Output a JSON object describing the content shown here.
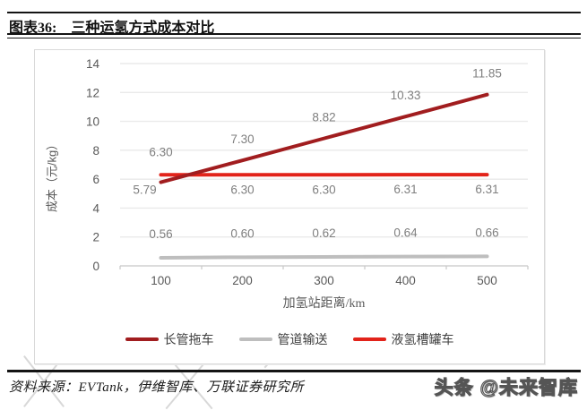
{
  "page": {
    "figure_label": "图表36:",
    "figure_title": "三种运氢方式成本对比",
    "source_text": "资料来源：EVTank，伊维智库、万联证券研究所",
    "watermark_text": "头条 @未来智库"
  },
  "chart_data": {
    "type": "line",
    "title": "",
    "xlabel": "加氢站距离/km",
    "ylabel": "成本（元/kg）",
    "categories": [
      100,
      200,
      300,
      400,
      500
    ],
    "ylim": [
      0,
      14
    ],
    "ytick_step": 2,
    "grid": true,
    "legend_position": "bottom",
    "series": [
      {
        "key": "tube-trailer",
        "name": "长管拖车",
        "color": "#A11D1F",
        "values": [
          5.79,
          7.3,
          8.82,
          10.33,
          11.85
        ],
        "label_position": "above",
        "first_label_position": "below-left"
      },
      {
        "key": "pipeline",
        "name": "管道输送",
        "color": "#BEBEBE",
        "values": [
          0.56,
          0.6,
          0.62,
          0.64,
          0.66
        ],
        "label_position": "above",
        "first_label_position": "above"
      },
      {
        "key": "liquid-hydrogen-tanker",
        "name": "液氢槽罐车",
        "color": "#E2231A",
        "values": [
          6.3,
          6.3,
          6.3,
          6.31,
          6.31
        ],
        "label_position": "below",
        "first_label_position": "above"
      }
    ]
  },
  "colors": {
    "gridline": "#EAEAEA",
    "axis": "#C8C8C8",
    "tick_label": "#595959",
    "data_label": "#7F7F7F",
    "rule": "#141414"
  }
}
